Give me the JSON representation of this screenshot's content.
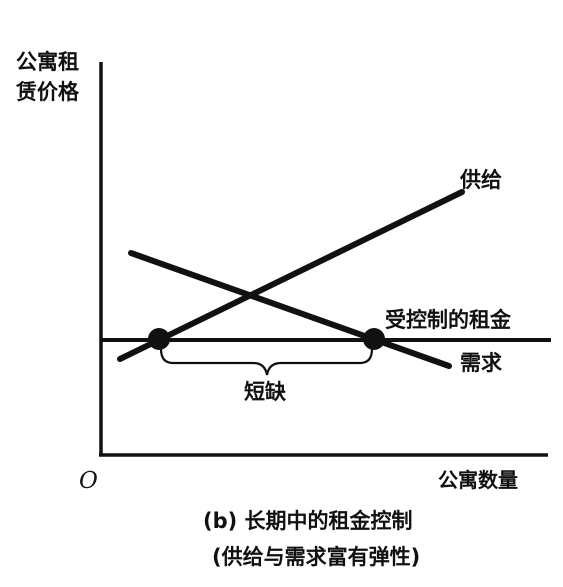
{
  "axes": {
    "y_label_line1": "公寓租",
    "y_label_line2": "赁价格",
    "x_label": "公寓数量",
    "origin": "O"
  },
  "curves": {
    "supply": "供给",
    "demand": "需求",
    "controlled_rent": "受控制的租金"
  },
  "shortage_label": "短缺",
  "caption": {
    "line1": "(b) 长期中的租金控制",
    "line2": "(供给与需求富有弹性)"
  },
  "colors": {
    "ink": "#111111",
    "background": "#ffffff"
  }
}
